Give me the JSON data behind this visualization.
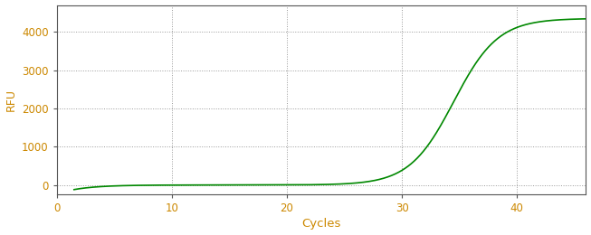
{
  "xlabel": "Cycles",
  "ylabel": "RFU",
  "line_color": "#008800",
  "line_width": 1.2,
  "background_color": "#ffffff",
  "grid_color": "#999999",
  "grid_linestyle": ":",
  "grid_linewidth": 0.7,
  "xlim": [
    0,
    46
  ],
  "ylim": [
    -250,
    4700
  ],
  "xticks": [
    0,
    10,
    20,
    30,
    40
  ],
  "yticks": [
    0,
    1000,
    2000,
    3000,
    4000
  ],
  "tick_color": "#cc8800",
  "label_color": "#cc8800",
  "spine_color": "#555555",
  "sigmoid_L": 4350,
  "sigmoid_k": 0.52,
  "sigmoid_x0": 34.5,
  "x_start": 1.5,
  "x_end": 46,
  "baseline_amplitude": -120,
  "baseline_decay": 0.45
}
